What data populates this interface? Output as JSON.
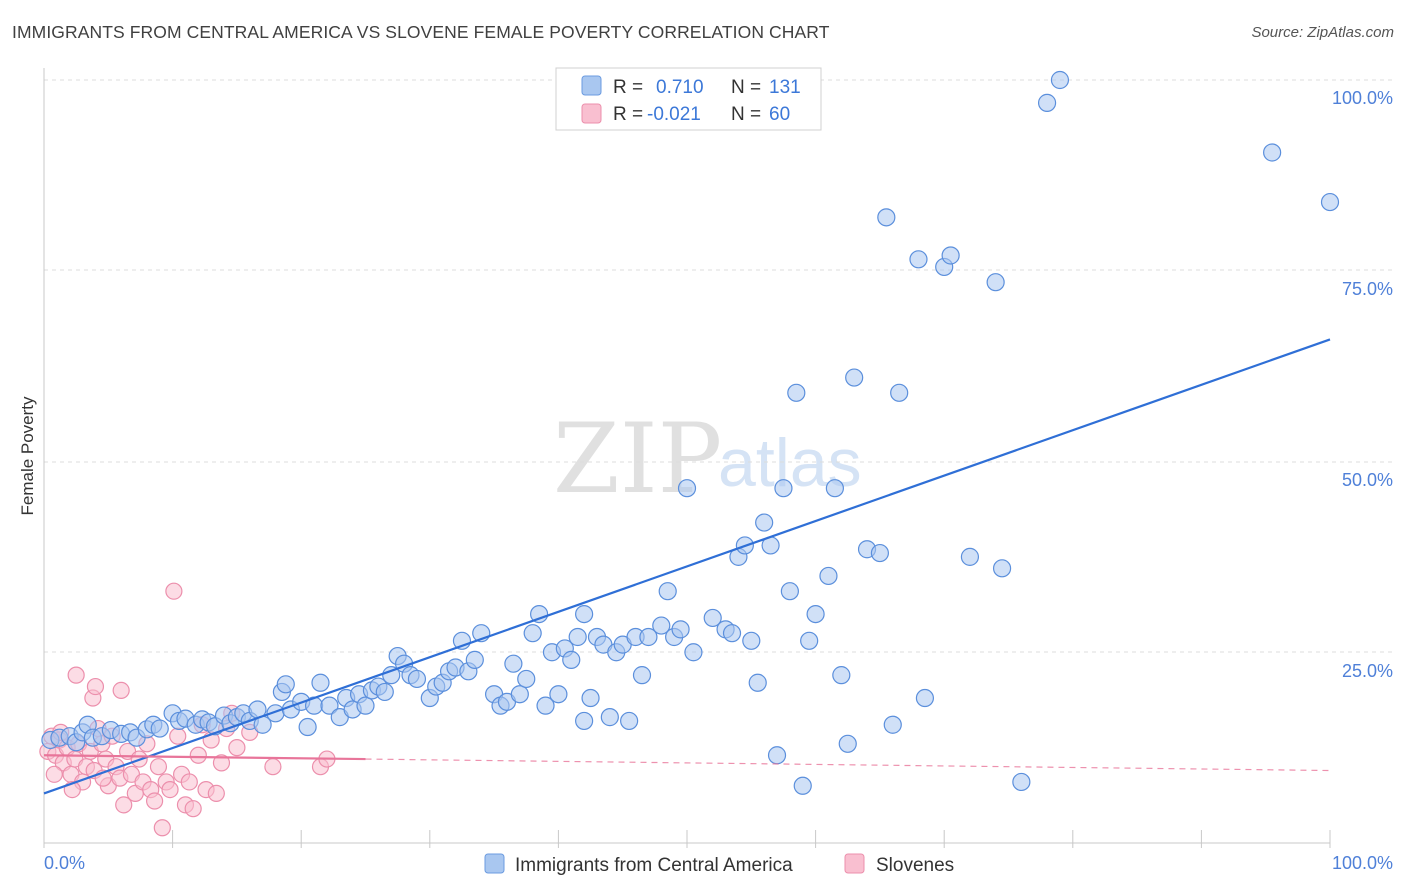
{
  "header": {
    "title": "IMMIGRANTS FROM CENTRAL AMERICA VS SLOVENE FEMALE POVERTY CORRELATION CHART",
    "source": "Source: ZipAtlas.com"
  },
  "legend": {
    "r_label": "R =",
    "n_label": "N =",
    "entries": [
      {
        "r": "0.710",
        "n": "131",
        "color": "#a9c7f0",
        "stroke": "#6b9be0"
      },
      {
        "r": "-0.021",
        "n": "60",
        "color": "#f9bfd0",
        "stroke": "#ec8fac"
      }
    ]
  },
  "watermark": {
    "zip": "ZIP",
    "atlas": "atlas"
  },
  "colors": {
    "blue_fill": "#a9c7f0",
    "blue_stroke": "#5b8fdc",
    "blue_line": "#2f6fd6",
    "pink_fill": "#f9bfd0",
    "pink_stroke": "#ec8fac",
    "pink_line": "#e8759a",
    "grid": "#dcdcdc"
  },
  "chart_data": {
    "type": "scatter",
    "title": "IMMIGRANTS FROM CENTRAL AMERICA VS SLOVENE FEMALE POVERTY CORRELATION CHART",
    "xlabel": "",
    "ylabel": "Female Poverty",
    "xlim": [
      0,
      100
    ],
    "ylim": [
      0,
      100
    ],
    "x_ticks": [
      "0.0%",
      "100.0%"
    ],
    "y_ticks": [
      "25.0%",
      "50.0%",
      "75.0%",
      "100.0%"
    ],
    "grid": true,
    "legend_position": "top-center",
    "series": [
      {
        "name": "Immigrants from Central America",
        "R": 0.71,
        "N": 131,
        "trend": {
          "x": [
            0,
            100
          ],
          "y": [
            6.5,
            66
          ]
        },
        "points": [
          [
            0.5,
            13.5
          ],
          [
            1.2,
            13.8
          ],
          [
            2,
            14
          ],
          [
            2.5,
            13.2
          ],
          [
            3,
            14.5
          ],
          [
            3.4,
            15.5
          ],
          [
            3.8,
            13.8
          ],
          [
            4.5,
            14
          ],
          [
            5.2,
            14.8
          ],
          [
            6,
            14.3
          ],
          [
            6.7,
            14.5
          ],
          [
            7.2,
            13.8
          ],
          [
            8,
            14.9
          ],
          [
            8.5,
            15.5
          ],
          [
            9,
            15
          ],
          [
            10,
            17
          ],
          [
            10.5,
            16
          ],
          [
            11,
            16.3
          ],
          [
            11.8,
            15.5
          ],
          [
            12.3,
            16.2
          ],
          [
            12.8,
            15.8
          ],
          [
            13.3,
            15.3
          ],
          [
            14,
            16.7
          ],
          [
            14.5,
            15.7
          ],
          [
            15,
            16.5
          ],
          [
            15.5,
            17
          ],
          [
            16,
            16
          ],
          [
            16.6,
            17.5
          ],
          [
            17,
            15.5
          ],
          [
            18,
            17
          ],
          [
            18.5,
            19.8
          ],
          [
            18.8,
            20.8
          ],
          [
            19.2,
            17.5
          ],
          [
            20,
            18.5
          ],
          [
            20.5,
            15.2
          ],
          [
            21,
            18
          ],
          [
            21.5,
            21
          ],
          [
            22.2,
            18
          ],
          [
            23,
            16.5
          ],
          [
            23.5,
            19
          ],
          [
            24,
            17.5
          ],
          [
            24.5,
            19.5
          ],
          [
            25,
            18
          ],
          [
            25.5,
            20
          ],
          [
            26,
            20.5
          ],
          [
            26.5,
            19.8
          ],
          [
            27,
            22
          ],
          [
            27.5,
            24.5
          ],
          [
            28,
            23.5
          ],
          [
            28.5,
            22
          ],
          [
            29,
            21.5
          ],
          [
            30,
            19
          ],
          [
            30.5,
            20.5
          ],
          [
            31,
            21
          ],
          [
            31.5,
            22.5
          ],
          [
            32,
            23
          ],
          [
            32.5,
            26.5
          ],
          [
            33,
            22.5
          ],
          [
            33.5,
            24
          ],
          [
            34,
            27.5
          ],
          [
            35,
            19.5
          ],
          [
            35.5,
            18
          ],
          [
            36,
            18.5
          ],
          [
            36.5,
            23.5
          ],
          [
            37,
            19.5
          ],
          [
            37.5,
            21.5
          ],
          [
            38,
            27.5
          ],
          [
            38.5,
            30
          ],
          [
            39,
            18
          ],
          [
            39.5,
            25
          ],
          [
            40,
            19.5
          ],
          [
            40.5,
            25.5
          ],
          [
            41,
            24
          ],
          [
            41.5,
            27
          ],
          [
            42,
            30
          ],
          [
            42.5,
            19
          ],
          [
            43,
            27
          ],
          [
            43.5,
            26
          ],
          [
            44,
            16.5
          ],
          [
            44.5,
            25
          ],
          [
            45,
            26
          ],
          [
            45.5,
            16
          ],
          [
            46,
            27
          ],
          [
            46.5,
            22
          ],
          [
            47,
            27
          ],
          [
            48,
            28.5
          ],
          [
            48.5,
            33
          ],
          [
            49,
            27
          ],
          [
            49.5,
            28
          ],
          [
            50,
            46.5
          ],
          [
            50.5,
            25
          ],
          [
            52,
            29.5
          ],
          [
            53,
            28
          ],
          [
            53.5,
            27.5
          ],
          [
            54,
            37.5
          ],
          [
            54.5,
            39
          ],
          [
            55,
            26.5
          ],
          [
            55.5,
            21
          ],
          [
            56,
            42
          ],
          [
            56.5,
            39
          ],
          [
            57,
            11.5
          ],
          [
            57.5,
            46.5
          ],
          [
            58,
            33
          ],
          [
            58.5,
            59
          ],
          [
            59,
            7.5
          ],
          [
            59.5,
            26.5
          ],
          [
            60,
            30
          ],
          [
            61,
            35
          ],
          [
            61.5,
            46.5
          ],
          [
            62,
            22
          ],
          [
            62.5,
            13
          ],
          [
            63,
            61
          ],
          [
            64,
            38.5
          ],
          [
            65,
            38
          ],
          [
            65.5,
            82
          ],
          [
            66,
            15.5
          ],
          [
            66.5,
            59
          ],
          [
            68,
            76.5
          ],
          [
            68.5,
            19
          ],
          [
            70,
            75.5
          ],
          [
            70.5,
            77
          ],
          [
            72,
            37.5
          ],
          [
            74,
            73.5
          ],
          [
            74.5,
            36
          ],
          [
            76,
            8
          ],
          [
            78,
            97
          ],
          [
            79,
            100
          ],
          [
            95.5,
            90.5
          ],
          [
            100,
            84
          ],
          [
            42,
            16
          ]
        ]
      },
      {
        "name": "Slovenes",
        "R": -0.021,
        "N": 60,
        "trend": {
          "x": [
            0,
            25
          ],
          "y": [
            11.5,
            11
          ],
          "dashed_to": [
            100,
            9.5
          ]
        },
        "points": [
          [
            0.3,
            12
          ],
          [
            0.6,
            14
          ],
          [
            0.9,
            11.5
          ],
          [
            1.2,
            13.5
          ],
          [
            1.5,
            10.5
          ],
          [
            1.8,
            12.5
          ],
          [
            2.1,
            9
          ],
          [
            2.4,
            11
          ],
          [
            2.7,
            13
          ],
          [
            3,
            8
          ],
          [
            3.3,
            10
          ],
          [
            3.6,
            12
          ],
          [
            3.9,
            9.5
          ],
          [
            4.2,
            15
          ],
          [
            4.5,
            13
          ],
          [
            4.8,
            11
          ],
          [
            5,
            7.5
          ],
          [
            5.3,
            14
          ],
          [
            5.6,
            10
          ],
          [
            5.9,
            8.5
          ],
          [
            6.2,
            5
          ],
          [
            6.5,
            12
          ],
          [
            6.8,
            9
          ],
          [
            7.1,
            6.5
          ],
          [
            7.4,
            11
          ],
          [
            7.7,
            8
          ],
          [
            8,
            13
          ],
          [
            8.3,
            7
          ],
          [
            8.6,
            5.5
          ],
          [
            8.9,
            10
          ],
          [
            9.2,
            2
          ],
          [
            9.5,
            8
          ],
          [
            9.8,
            7
          ],
          [
            10.1,
            33
          ],
          [
            10.4,
            14
          ],
          [
            10.7,
            9
          ],
          [
            11,
            5
          ],
          [
            11.3,
            8
          ],
          [
            11.6,
            4.5
          ],
          [
            12,
            11.5
          ],
          [
            12.3,
            15.5
          ],
          [
            12.6,
            7
          ],
          [
            13,
            13.5
          ],
          [
            13.4,
            6.5
          ],
          [
            13.8,
            10.5
          ],
          [
            14.2,
            15
          ],
          [
            14.6,
            17
          ],
          [
            15,
            12.5
          ],
          [
            2.5,
            22
          ],
          [
            3.8,
            19
          ],
          [
            4,
            20.5
          ],
          [
            6,
            20
          ],
          [
            16,
            14.5
          ],
          [
            17.8,
            10
          ],
          [
            21.5,
            10
          ],
          [
            22,
            11
          ],
          [
            1.3,
            14.5
          ],
          [
            0.8,
            9
          ],
          [
            2.2,
            7
          ],
          [
            4.6,
            8.5
          ]
        ]
      }
    ]
  },
  "bottom_legend": [
    {
      "label": "Immigrants from Central America",
      "color": "#a9c7f0",
      "stroke": "#6b9be0"
    },
    {
      "label": "Slovenes",
      "color": "#f9bfd0",
      "stroke": "#ec8fac"
    }
  ]
}
